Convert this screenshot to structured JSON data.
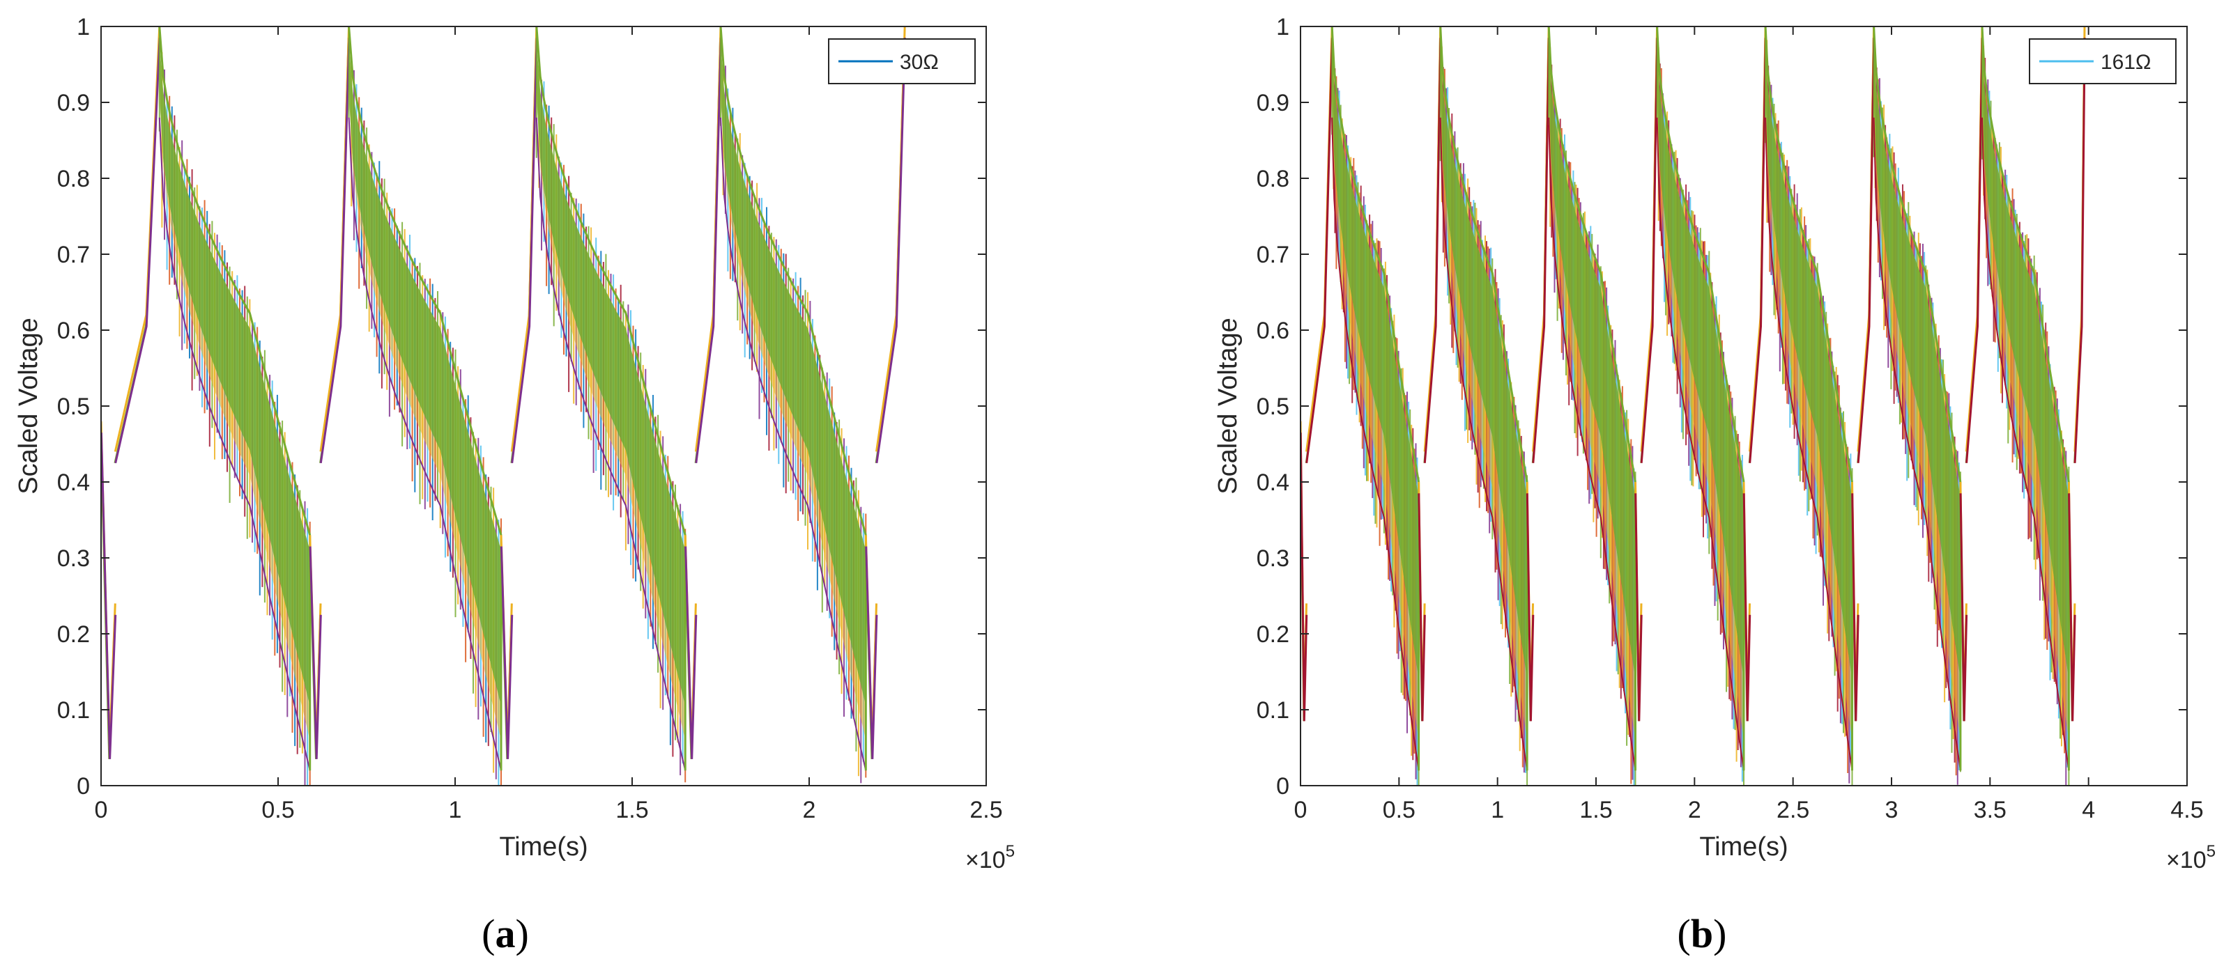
{
  "chart_data": [
    {
      "type": "line",
      "panel_label": "(a)",
      "panel_letter": "a",
      "xlabel": "Time(s)",
      "ylabel": "Scaled Voltage",
      "x_exponent_base": "×10",
      "x_exponent_power": "5",
      "xlim": [
        0,
        2.5
      ],
      "ylim": [
        0,
        1
      ],
      "xticks": [
        0,
        0.5,
        1,
        1.5,
        2,
        2.5
      ],
      "xtick_labels": [
        "0",
        "0.5",
        "1",
        "1.5",
        "2",
        "2.5"
      ],
      "yticks": [
        0,
        0.1,
        0.2,
        0.3,
        0.4,
        0.5,
        0.6,
        0.7,
        0.8,
        0.9,
        1
      ],
      "ytick_labels": [
        "0",
        "0.1",
        "0.2",
        "0.3",
        "0.4",
        "0.5",
        "0.6",
        "0.7",
        "0.8",
        "0.9",
        "1"
      ],
      "legend": {
        "label": "30Ω",
        "location": "top-right"
      },
      "series_colors": [
        "#77AC30",
        "#EDB120",
        "#7E2F8E",
        "#4DBEEE",
        "#D95319",
        "#0072BD",
        "#A2142F"
      ],
      "legend_color": "#0072BD",
      "cycles": [
        {
          "rest_start": 0.0,
          "rest_end": 0.04,
          "charge_end": 0.165,
          "discharge_end": 0.59
        },
        {
          "rest_start": 0.59,
          "rest_end": 0.62,
          "charge_end": 0.7,
          "discharge_end": 1.13
        },
        {
          "rest_start": 1.13,
          "rest_end": 1.16,
          "charge_end": 1.23,
          "discharge_end": 1.65
        },
        {
          "rest_start": 1.65,
          "rest_end": 1.68,
          "charge_end": 1.75,
          "discharge_end": 2.16
        },
        {
          "rest_start": 2.16,
          "rest_end": 2.19,
          "charge_end": 2.27,
          "discharge_end": 2.27
        }
      ],
      "profile": {
        "start_level": 0.48,
        "rest_min": 0.05,
        "peak": 1.0,
        "mid_upper": 0.5,
        "mid_lower": 0.22,
        "end_upper": 0.33,
        "end_lower": 0.02
      }
    },
    {
      "type": "line",
      "panel_label": "(b)",
      "panel_letter": "b",
      "xlabel": "Time(s)",
      "ylabel": "Scaled Voltage",
      "x_exponent_base": "×10",
      "x_exponent_power": "5",
      "xlim": [
        0,
        4.5
      ],
      "ylim": [
        0,
        1
      ],
      "xticks": [
        0,
        0.5,
        1,
        1.5,
        2,
        2.5,
        3,
        3.5,
        4,
        4.5
      ],
      "xtick_labels": [
        "0",
        "0.5",
        "1",
        "1.5",
        "2",
        "2.5",
        "3",
        "3.5",
        "4",
        "4.5"
      ],
      "yticks": [
        0,
        0.1,
        0.2,
        0.3,
        0.4,
        0.5,
        0.6,
        0.7,
        0.8,
        0.9,
        1
      ],
      "ytick_labels": [
        "0",
        "0.1",
        "0.2",
        "0.3",
        "0.4",
        "0.5",
        "0.6",
        "0.7",
        "0.8",
        "0.9",
        "1"
      ],
      "legend": {
        "label": "161Ω",
        "location": "top-right"
      },
      "series_colors": [
        "#77AC30",
        "#EDB120",
        "#A2142F",
        "#D95319",
        "#7E2F8E",
        "#4DBEEE"
      ],
      "legend_color": "#4DBEEE",
      "cycles": [
        {
          "rest_start": 0.0,
          "rest_end": 0.03,
          "charge_end": 0.16,
          "discharge_end": 0.6
        },
        {
          "rest_start": 0.6,
          "rest_end": 0.63,
          "charge_end": 0.71,
          "discharge_end": 1.15
        },
        {
          "rest_start": 1.15,
          "rest_end": 1.18,
          "charge_end": 1.26,
          "discharge_end": 1.7
        },
        {
          "rest_start": 1.7,
          "rest_end": 1.73,
          "charge_end": 1.81,
          "discharge_end": 2.25
        },
        {
          "rest_start": 2.25,
          "rest_end": 2.28,
          "charge_end": 2.36,
          "discharge_end": 2.8
        },
        {
          "rest_start": 2.8,
          "rest_end": 2.83,
          "charge_end": 2.91,
          "discharge_end": 3.35
        },
        {
          "rest_start": 3.35,
          "rest_end": 3.38,
          "charge_end": 3.46,
          "discharge_end": 3.9
        },
        {
          "rest_start": 3.9,
          "rest_end": 3.93,
          "charge_end": 3.98,
          "discharge_end": 3.98
        }
      ],
      "profile": {
        "start_level": 0.48,
        "rest_min": 0.1,
        "peak": 1.0,
        "mid_upper": 0.57,
        "mid_lower": 0.2,
        "end_upper": 0.4,
        "end_lower": 0.02
      }
    }
  ]
}
